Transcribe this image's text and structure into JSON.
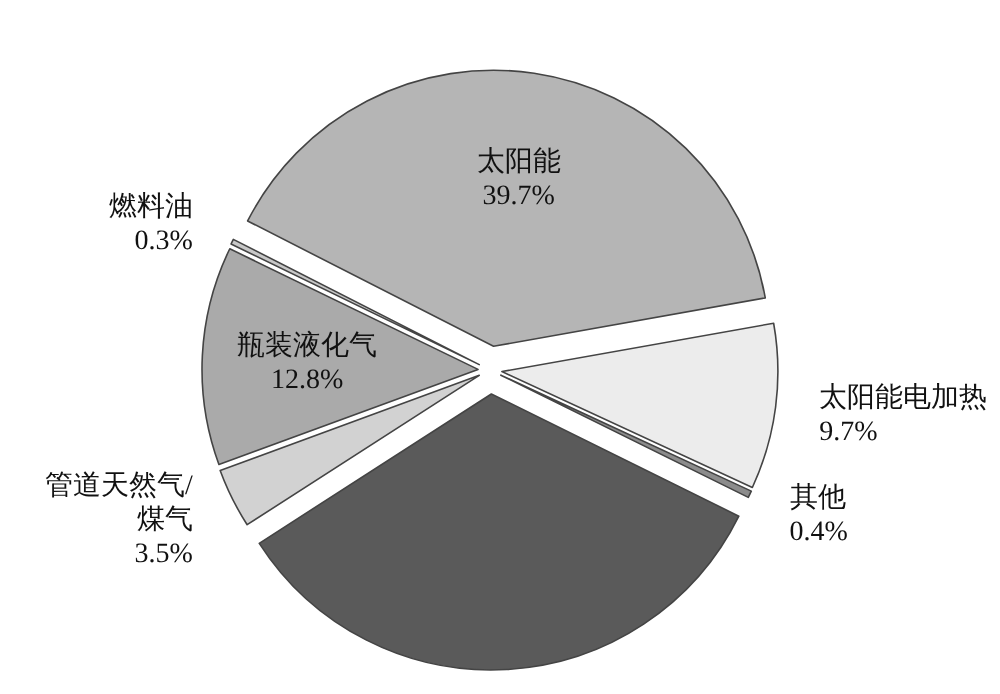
{
  "chart_data": {
    "type": "pie",
    "categories": [
      "太阳能",
      "太阳能电加热",
      "其他",
      null,
      "管道天然气/煤气",
      "瓶装液化气",
      "燃料油"
    ],
    "values": [
      39.7,
      9.7,
      0.4,
      33.6,
      3.5,
      12.8,
      0.3
    ],
    "colors": [
      "#b5b5b5",
      "#ececec",
      "#8c8c8c",
      "#5a5a5a",
      "#d2d2d2",
      "#aaaaaa",
      "#c8c8c8"
    ],
    "value_labels": [
      "39.7%",
      "9.7%",
      "0.4%",
      null,
      "3.5%",
      "12.8%",
      "0.3%"
    ]
  }
}
